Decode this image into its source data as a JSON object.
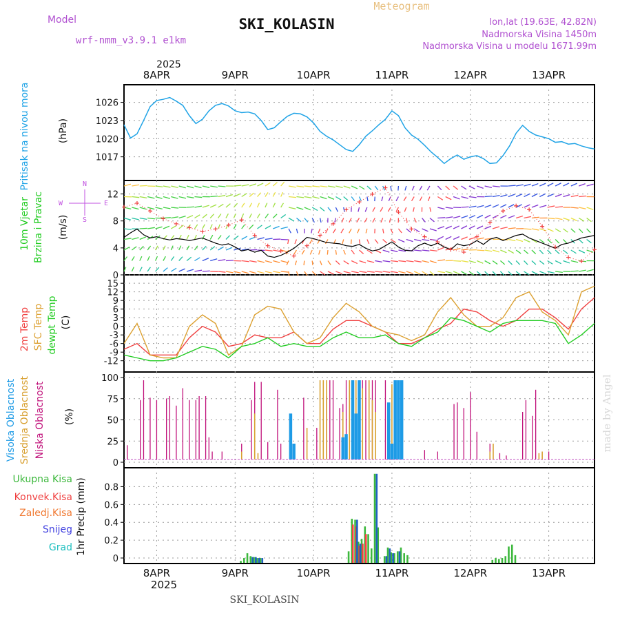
{
  "header": {
    "title": "SKI_KOLASIN",
    "subtitle": "Meteogram",
    "model_label": "Model",
    "model_name": "wrf-nmm_v3.9.1 e1km",
    "location": "lon,lat (19.63E, 42.82N)",
    "elevation": "Nadmorska Visina 1450m",
    "model_elevation": "Nadmorska Visina u modelu 1671.99m",
    "footer": "SKI_KOLASIN",
    "watermark": "made by Angel"
  },
  "colors": {
    "pressure": "#1fa3e6",
    "temp2m": "#f04040",
    "sfc": "#dca030",
    "dew": "#22cc22",
    "high_cloud": "#1e9be6",
    "mid_cloud": "#d8a030",
    "low_cloud": "#c0107a",
    "total_precip": "#3cb83c",
    "conv_precip": "#f04040",
    "frz_precip": "#f07830",
    "snow": "#4040e0",
    "hail": "#20c0c0",
    "wind_dir_label": "#c050e0"
  },
  "time_axis": {
    "year_label": "2025",
    "days": [
      "8APR",
      "9APR",
      "10APR",
      "11APR",
      "12APR",
      "13APR"
    ]
  },
  "panels": {
    "pressure": {
      "title": "Pritisak na nivou mora",
      "unit": "(hPa)"
    },
    "wind": {
      "title_1": "10m Vjetar",
      "title_2": "Brzina i Pravac",
      "unit": "(m/s)",
      "compass": "N",
      "compass_w": "W",
      "compass_e": "E",
      "compass_s": "S"
    },
    "temp": {
      "label_2m": "2m Temp",
      "label_sfc": "SFC Temp",
      "label_dew": "dewpt Temp",
      "unit": "(C)"
    },
    "cloud": {
      "label_high": "Visoka Oblacnost",
      "label_mid": "Srednja Oblacnost",
      "label_low": "Niska Oblacnost",
      "unit": "(%)"
    },
    "precip": {
      "label_total": "Ukupna Kisa",
      "label_conv": "Konvek.Kisa",
      "label_frz": "Zaledj.Kisa",
      "label_snow": "Snijeg",
      "label_hail": "Grad",
      "unit": "1hr Precip (mm)"
    }
  },
  "chart_data": [
    {
      "type": "line",
      "name": "pressure",
      "x_unit": "hours from 8APR 00UTC minus 5",
      "xlim": [
        0,
        144
      ],
      "ylim": [
        1014,
        1028
      ],
      "yticks": [
        1017,
        1020,
        1023,
        1026
      ],
      "series": [
        {
          "name": "Pritisak na nivou mora",
          "x": [
            0,
            2,
            4,
            6,
            8,
            10,
            12,
            14,
            16,
            18,
            20,
            22,
            24,
            26,
            28,
            30,
            32,
            34,
            36,
            38,
            40,
            42,
            44,
            46,
            48,
            50,
            52,
            54,
            56,
            58,
            60,
            62,
            64,
            66,
            68,
            70,
            72,
            74,
            76,
            78,
            80,
            82,
            84,
            86,
            88,
            90,
            92,
            94,
            96,
            98,
            100,
            102,
            104,
            106,
            108,
            110,
            112,
            114,
            116,
            118,
            120,
            122,
            124,
            126,
            128,
            130,
            132,
            134,
            136,
            138,
            140,
            142,
            144
          ],
          "y": [
            1022.3,
            1020.1,
            1020.8,
            1023,
            1025.3,
            1026.3,
            1026.5,
            1026.8,
            1026.2,
            1025.5,
            1023.8,
            1022.5,
            1023.2,
            1024.6,
            1025.5,
            1025.8,
            1025.4,
            1024.6,
            1024.3,
            1024.4,
            1024.1,
            1023.0,
            1021.5,
            1021.8,
            1022.8,
            1023.7,
            1024.2,
            1024.1,
            1023.6,
            1022.6,
            1021.2,
            1020.4,
            1019.8,
            1019.0,
            1018.2,
            1017.9,
            1019.0,
            1020.4,
            1021.3,
            1022.3,
            1023.2,
            1024.6,
            1023.8,
            1021.8,
            1020.6,
            1019.9,
            1018.9,
            1017.8,
            1016.9,
            1015.9,
            1016.7,
            1017.3,
            1016.6,
            1017.0,
            1017.2,
            1016.7,
            1015.9,
            1016.0,
            1017.2,
            1018.8,
            1020.9,
            1022.2,
            1021.2,
            1020.6,
            1020.3,
            1020.0,
            1019.4,
            1019.5,
            1019.1,
            1019.2,
            1018.8,
            1018.5,
            1018.3
          ]
        }
      ]
    },
    {
      "type": "line",
      "name": "wind",
      "xlim": [
        0,
        144
      ],
      "ylim": [
        0,
        14
      ],
      "yticks": [
        0,
        4,
        8,
        12
      ],
      "series": [
        {
          "name": "10m Vjetar",
          "x": [
            0,
            2,
            4,
            6,
            8,
            10,
            12,
            14,
            16,
            18,
            20,
            22,
            24,
            26,
            28,
            30,
            32,
            34,
            36,
            38,
            40,
            42,
            44,
            46,
            48,
            50,
            52,
            54,
            56,
            58,
            60,
            62,
            64,
            66,
            68,
            70,
            72,
            74,
            76,
            78,
            80,
            82,
            84,
            86,
            88,
            90,
            92,
            94,
            96,
            98,
            100,
            102,
            104,
            106,
            108,
            110,
            112,
            114,
            116,
            118,
            120,
            122,
            124,
            126,
            128,
            130,
            132,
            134,
            136,
            138,
            140,
            142,
            144
          ],
          "y": [
            5.5,
            6.2,
            6.8,
            5.9,
            5.4,
            5.6,
            5.3,
            5.1,
            5.3,
            5.2,
            5.0,
            5.2,
            5.4,
            5.0,
            4.6,
            4.3,
            4.5,
            4.0,
            3.4,
            3.6,
            3.2,
            3.5,
            2.6,
            2.4,
            2.7,
            3.2,
            3.8,
            4.6,
            5.5,
            5.3,
            5.0,
            4.7,
            4.6,
            4.5,
            4.2,
            4.1,
            4.4,
            3.8,
            3.4,
            3.6,
            4.2,
            4.8,
            4.0,
            3.5,
            3.4,
            4.2,
            4.6,
            4.2,
            4.6,
            4.0,
            3.6,
            4.5,
            4.2,
            4.4,
            5.0,
            4.4,
            5.2,
            5.5,
            5.0,
            5.4,
            5.8,
            6.0,
            5.4,
            5.0,
            4.6,
            4.2,
            3.8,
            4.4,
            4.6,
            5.0,
            5.4,
            5.6,
            5.8
          ]
        },
        {
          "name": "gust",
          "x": [
            0,
            4,
            8,
            12,
            16,
            20,
            24,
            28,
            32,
            36,
            40,
            44,
            48,
            52,
            56,
            60,
            64,
            68,
            72,
            76,
            80,
            84,
            88,
            92,
            96,
            100,
            104,
            108,
            112,
            116,
            120,
            124,
            128,
            132,
            136,
            140,
            144
          ],
          "y": [
            10.2,
            10.8,
            9.6,
            8.4,
            7.6,
            7.0,
            6.4,
            6.8,
            7.4,
            8.2,
            5.8,
            4.2,
            3.4,
            2.6,
            4.2,
            5.8,
            7.6,
            9.8,
            11.0,
            12.2,
            13.2,
            9.4,
            6.8,
            5.6,
            4.8,
            3.6,
            3.2,
            5.6,
            7.8,
            9.6,
            10.4,
            9.8,
            7.2,
            4.0,
            2.4,
            1.8,
            3.6
          ]
        }
      ]
    },
    {
      "type": "line",
      "name": "temperature",
      "xlim": [
        0,
        144
      ],
      "ylim": [
        -14,
        16
      ],
      "yticks": [
        -12,
        -9,
        -6,
        -3,
        0,
        3,
        6,
        9,
        12,
        15
      ],
      "series": [
        {
          "name": "2m Temp",
          "x": [
            0,
            4,
            8,
            12,
            16,
            20,
            24,
            28,
            32,
            36,
            40,
            44,
            48,
            52,
            56,
            60,
            64,
            68,
            72,
            76,
            80,
            84,
            88,
            92,
            96,
            100,
            104,
            108,
            112,
            116,
            120,
            124,
            128,
            132,
            136,
            140,
            144
          ],
          "y": [
            -8,
            -6,
            -10,
            -10,
            -10,
            -4,
            0,
            -2,
            -7,
            -6,
            -3,
            -4,
            -4,
            -2,
            -6,
            -6,
            -1,
            2,
            2,
            0,
            -2,
            -6,
            -6,
            -4,
            -1,
            1,
            6,
            5,
            2,
            0,
            2,
            6,
            6,
            3,
            -1,
            6,
            10
          ]
        },
        {
          "name": "SFC Temp",
          "x": [
            0,
            4,
            8,
            12,
            16,
            20,
            24,
            28,
            32,
            36,
            40,
            44,
            48,
            52,
            56,
            60,
            64,
            68,
            72,
            76,
            80,
            84,
            88,
            92,
            96,
            100,
            104,
            108,
            112,
            116,
            120,
            124,
            128,
            132,
            136,
            140,
            144
          ],
          "y": [
            -6,
            1,
            -10,
            -11,
            -11,
            0,
            4,
            1,
            -10,
            -7,
            4,
            7,
            6,
            -2,
            -6,
            -4,
            3,
            8,
            5,
            0,
            -2,
            -3,
            -5,
            -3,
            5,
            10,
            4,
            0,
            0,
            3,
            10,
            12,
            5,
            2,
            -3,
            12,
            14
          ]
        },
        {
          "name": "dewpt Temp",
          "x": [
            0,
            4,
            8,
            12,
            16,
            20,
            24,
            28,
            32,
            36,
            40,
            44,
            48,
            52,
            56,
            60,
            64,
            68,
            72,
            76,
            80,
            84,
            88,
            92,
            96,
            100,
            104,
            108,
            112,
            116,
            120,
            124,
            128,
            132,
            136,
            140,
            144
          ],
          "y": [
            -10,
            -11,
            -12,
            -12,
            -11,
            -9,
            -7,
            -8,
            -11,
            -7,
            -6,
            -4,
            -7,
            -6,
            -7,
            -7,
            -4,
            -2,
            -4,
            -4,
            -3,
            -6,
            -7,
            -4,
            -2,
            3,
            2,
            0,
            -2,
            1,
            2,
            2,
            2,
            1,
            -6,
            -3,
            1
          ]
        }
      ]
    },
    {
      "type": "bar",
      "name": "cloud",
      "xlim": [
        0,
        144
      ],
      "ylim": [
        0,
        100
      ],
      "yticks": [
        0,
        25,
        50,
        75,
        100
      ],
      "series": [
        {
          "name": "Niska Oblacnost",
          "x": [
            1,
            5,
            6,
            8,
            10,
            13,
            14,
            16,
            18,
            20,
            22,
            23,
            25,
            26,
            27,
            30,
            36,
            39,
            40,
            42,
            44,
            47,
            48,
            55,
            59,
            62,
            63,
            64,
            66,
            67,
            68,
            69,
            70,
            71,
            72,
            73,
            74,
            75,
            76,
            77,
            80,
            92,
            96,
            101,
            102,
            104,
            106,
            108,
            112,
            115,
            117,
            122,
            123,
            125,
            126,
            130
          ],
          "y": [
            18,
            75,
            100,
            78,
            75,
            77,
            80,
            68,
            90,
            75,
            75,
            80,
            80,
            28,
            10,
            10,
            20,
            75,
            98,
            98,
            22,
            88,
            20,
            78,
            40,
            80,
            100,
            100,
            65,
            70,
            100,
            100,
            100,
            100,
            100,
            100,
            100,
            100,
            100,
            100,
            100,
            12,
            10,
            70,
            72,
            65,
            85,
            35,
            20,
            8,
            5,
            60,
            75,
            55,
            88,
            10
          ]
        },
        {
          "name": "Srednja Oblacnost",
          "x": [
            36,
            40,
            41,
            56,
            60,
            61,
            62,
            67,
            69,
            70,
            71,
            73,
            75,
            76,
            77,
            82,
            112,
            113,
            127,
            128
          ],
          "y": [
            10,
            58,
            8,
            40,
            100,
            100,
            100,
            60,
            100,
            100,
            100,
            90,
            100,
            75,
            60,
            95,
            10,
            20,
            8,
            10
          ]
        },
        {
          "name": "Visoka Oblacnost",
          "x": [
            51,
            52,
            67,
            68,
            70,
            71,
            72,
            81,
            82,
            83,
            84,
            85
          ],
          "y": [
            58,
            20,
            28,
            32,
            100,
            58,
            100,
            72,
            20,
            100,
            100,
            100
          ]
        }
      ]
    },
    {
      "type": "bar",
      "name": "precipitation",
      "xlim": [
        0,
        144
      ],
      "ylim": [
        0,
        0.95
      ],
      "yticks": [
        0,
        0.2,
        0.4,
        0.6,
        0.8
      ],
      "series": [
        {
          "name": "Ukupna Kisa",
          "x": [
            36,
            37,
            38,
            39,
            40,
            41,
            42,
            69,
            70,
            71,
            72,
            73,
            74,
            75,
            76,
            77,
            78,
            80,
            81,
            82,
            83,
            84,
            85,
            86,
            87,
            113,
            114,
            115,
            116,
            117,
            118,
            119,
            120
          ],
          "y": [
            0.02,
            0.05,
            0.1,
            0.07,
            0.06,
            0.05,
            0.05,
            0.12,
            0.46,
            0.45,
            0.22,
            0.25,
            0.38,
            0.3,
            0.15,
            0.93,
            0.37,
            0.07,
            0.16,
            0.11,
            0.1,
            0.12,
            0.16,
            0.1,
            0.08,
            0.03,
            0.05,
            0.04,
            0.05,
            0.07,
            0.17,
            0.19,
            0.08
          ]
        },
        {
          "name": "Konvek.Kisa",
          "x": [
            70,
            71,
            72,
            73,
            74
          ],
          "y": [
            0.4,
            0.38,
            0.18,
            0.2,
            0.3
          ]
        },
        {
          "name": "Snijeg",
          "x": [
            39,
            40,
            41,
            42,
            71,
            72,
            77,
            80,
            81,
            82,
            84
          ],
          "y": [
            0.06,
            0.06,
            0.05,
            0.05,
            0.45,
            0.2,
            0.93,
            0.07,
            0.15,
            0.1,
            0.12
          ]
        }
      ]
    }
  ]
}
